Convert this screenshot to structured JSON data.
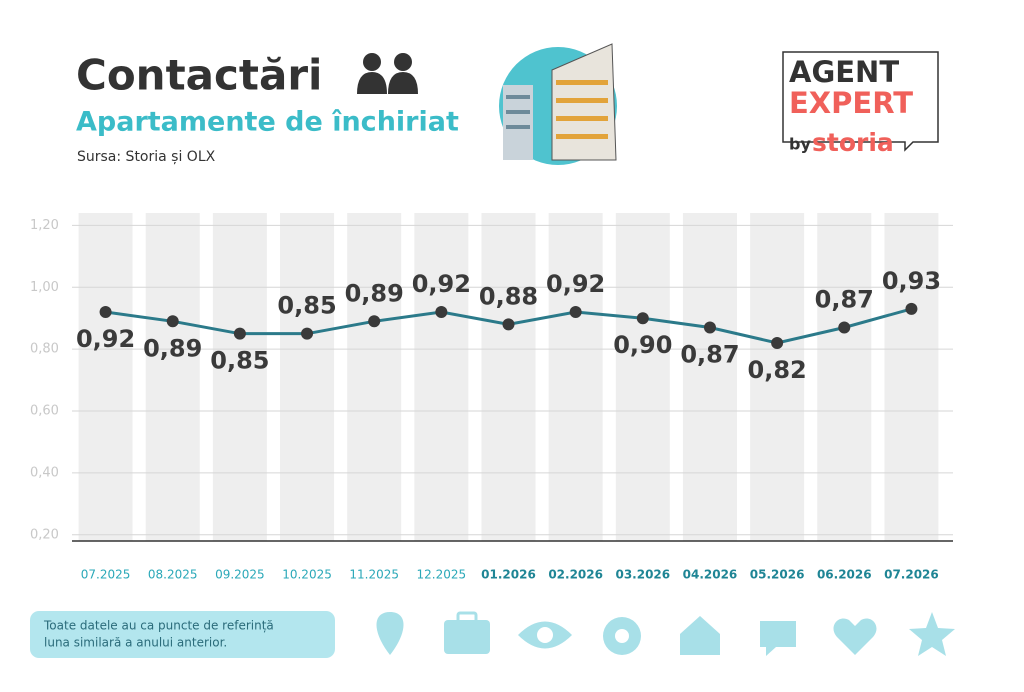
{
  "header": {
    "title": "Contactări",
    "subtitle": "Apartamente de închiriat",
    "source": "Sursa: Storia și OLX"
  },
  "logo": {
    "line1": "AGENT",
    "line2": "EXPERT",
    "by": "by",
    "brand": "storia"
  },
  "note": [
    "Toate datele au ca puncte de referință",
    "luna similară a anului anterior."
  ],
  "chart_data": {
    "type": "line",
    "categories": [
      "07.2025",
      "08.2025",
      "09.2025",
      "10.2025",
      "11.2025",
      "12.2025",
      "01.2026",
      "02.2026",
      "03.2026",
      "04.2026",
      "05.2026",
      "06.2026",
      "07.2026"
    ],
    "values": [
      0.92,
      0.89,
      0.85,
      0.85,
      0.89,
      0.92,
      0.88,
      0.92,
      0.9,
      0.87,
      0.82,
      0.87,
      0.93
    ],
    "value_labels": [
      "0,92",
      "0,89",
      "0,85",
      "0,85",
      "0,89",
      "0,92",
      "0,88",
      "0,92",
      "0,90",
      "0,87",
      "0,82",
      "0,87",
      "0,93"
    ],
    "color": "#2b7a8a",
    "ylim": [
      0.18,
      1.24
    ],
    "yticks": [
      {
        "value": 0.2,
        "label": "0,20"
      },
      {
        "value": 0.4,
        "label": "0,40"
      },
      {
        "value": 0.6,
        "label": "0,60"
      },
      {
        "value": 0.8,
        "label": "0,80"
      },
      {
        "value": 1.0,
        "label": "1,00"
      },
      {
        "value": 1.2,
        "label": "1,20"
      }
    ],
    "grid": true
  }
}
